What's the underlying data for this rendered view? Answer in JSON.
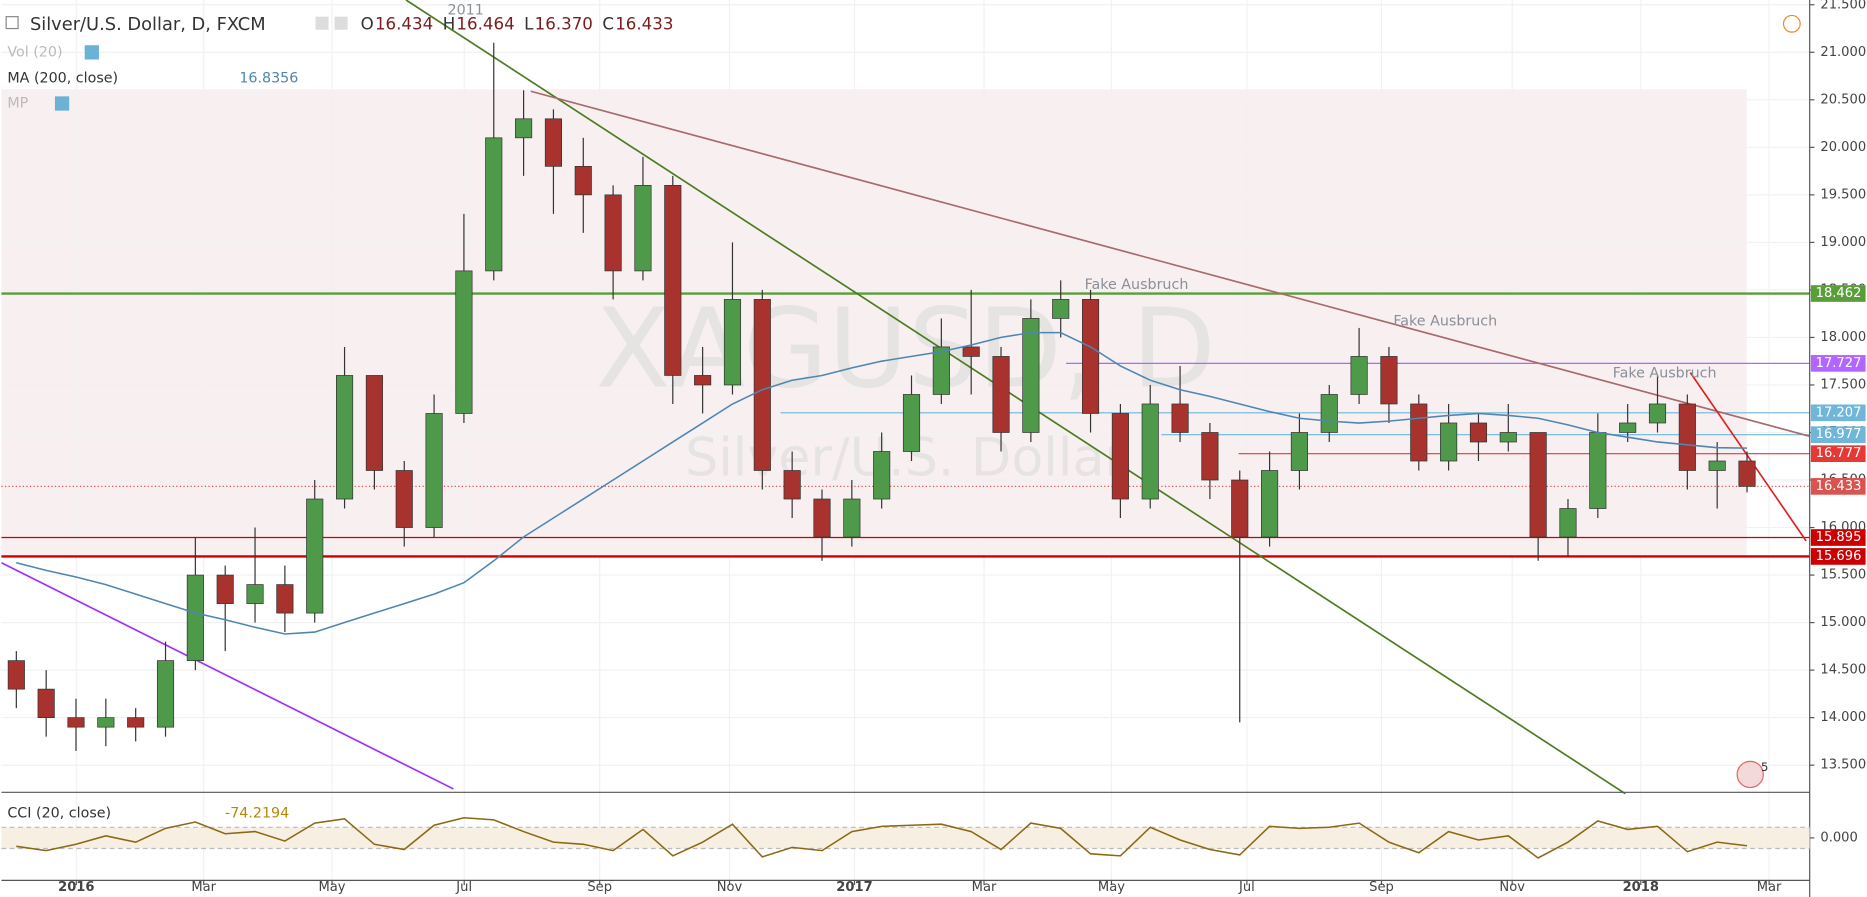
{
  "header": {
    "symbol": "Silver/U.S. Dollar, D, FXCM",
    "ohlc_labels": [
      "O",
      "H",
      "L",
      "C"
    ],
    "ohlc": [
      "16.434",
      "16.464",
      "16.370",
      "16.433"
    ]
  },
  "indicators": {
    "vol": "Vol (20)",
    "ma": "MA (200, close)",
    "ma_value": "16.8356",
    "mp": "MP",
    "cci": "CCI (20, close)",
    "cci_value": "-74.2194"
  },
  "watermark": {
    "symbol": "XAGUSD, D",
    "name": "Silver/U.S. Dollar"
  },
  "badge": "5",
  "chart_data": [
    {
      "type": "candlestick",
      "up_color": "#4f9a4a",
      "down_color": "#a8322d",
      "grid": true,
      "categories": [
        null,
        null,
        null,
        null,
        null,
        null,
        null,
        null,
        null,
        null,
        null,
        null,
        null,
        null,
        null,
        null,
        null,
        null,
        null,
        null,
        null,
        null,
        null,
        null,
        null,
        null,
        null,
        null,
        null,
        null,
        null,
        null,
        null,
        null,
        null,
        null,
        null,
        null,
        null,
        null,
        null,
        null,
        null,
        null,
        null,
        null,
        null,
        null,
        null,
        null,
        null,
        null,
        null,
        null,
        null,
        null,
        null,
        null,
        null
      ],
      "open": [
        14.6,
        14.3,
        14.0,
        13.9,
        14.0,
        13.9,
        14.6,
        15.5,
        15.2,
        15.4,
        15.1,
        16.3,
        17.6,
        16.6,
        16.0,
        17.2,
        18.7,
        20.1,
        20.3,
        19.8,
        19.5,
        18.7,
        19.6,
        17.6,
        17.5,
        18.4,
        16.6,
        16.3,
        15.9,
        16.3,
        16.8,
        17.4,
        17.9,
        17.8,
        17.0,
        18.2,
        18.4,
        17.2,
        16.3,
        17.3,
        17.0,
        16.5,
        15.9,
        16.6,
        17.0,
        17.4,
        17.8,
        17.3,
        16.7,
        17.1,
        16.9,
        17.0,
        15.9,
        16.2,
        17.0,
        17.1,
        17.3,
        16.6,
        16.7
      ],
      "high": [
        14.7,
        14.5,
        14.2,
        14.2,
        14.1,
        14.8,
        15.9,
        15.6,
        16.0,
        15.6,
        16.5,
        17.9,
        17.6,
        16.7,
        17.4,
        19.3,
        21.1,
        20.6,
        20.4,
        20.1,
        19.6,
        19.9,
        19.7,
        17.9,
        19.0,
        18.5,
        16.8,
        16.4,
        16.5,
        17.0,
        17.6,
        18.2,
        18.5,
        17.9,
        18.4,
        18.6,
        18.5,
        17.3,
        17.5,
        17.7,
        17.1,
        16.6,
        16.8,
        17.2,
        17.5,
        18.1,
        17.9,
        17.4,
        17.3,
        17.2,
        17.3,
        17.0,
        16.3,
        17.2,
        17.3,
        17.6,
        17.4,
        16.9,
        16.8
      ],
      "low": [
        14.1,
        13.8,
        13.65,
        13.7,
        13.75,
        13.8,
        14.5,
        14.7,
        15.0,
        14.9,
        15.0,
        16.2,
        16.4,
        15.8,
        15.9,
        17.1,
        18.6,
        19.7,
        19.3,
        19.1,
        18.4,
        18.6,
        17.3,
        17.2,
        17.4,
        16.4,
        16.1,
        15.65,
        15.8,
        16.2,
        16.7,
        17.3,
        17.4,
        16.8,
        16.9,
        18.0,
        17.0,
        16.1,
        16.2,
        16.9,
        16.3,
        13.95,
        15.8,
        16.4,
        16.9,
        17.3,
        17.1,
        16.6,
        16.6,
        16.7,
        16.8,
        15.65,
        15.7,
        16.1,
        16.9,
        17.0,
        16.4,
        16.2,
        16.37
      ],
      "close": [
        14.3,
        14.0,
        13.9,
        14.0,
        13.9,
        14.6,
        15.5,
        15.2,
        15.4,
        15.1,
        16.3,
        17.6,
        16.6,
        16.0,
        17.2,
        18.7,
        20.1,
        20.3,
        19.8,
        19.5,
        18.7,
        19.6,
        17.6,
        17.5,
        18.4,
        16.6,
        16.3,
        15.9,
        16.3,
        16.8,
        17.4,
        17.9,
        17.8,
        17.0,
        18.2,
        18.4,
        17.2,
        16.3,
        17.3,
        17.0,
        16.5,
        15.9,
        16.6,
        17.0,
        17.4,
        17.8,
        17.3,
        16.7,
        17.1,
        16.9,
        17.0,
        15.9,
        16.2,
        17.0,
        17.1,
        17.3,
        16.6,
        16.7,
        16.433
      ],
      "series": [
        {
          "name": "MA (200, close)",
          "color": "#4f86b0",
          "values": [
            15.63,
            15.55,
            15.48,
            15.4,
            15.3,
            15.2,
            15.1,
            15.03,
            14.95,
            14.88,
            14.9,
            15.0,
            15.1,
            15.2,
            15.3,
            15.42,
            15.65,
            15.9,
            16.1,
            16.3,
            16.5,
            16.7,
            16.9,
            17.1,
            17.3,
            17.45,
            17.55,
            17.6,
            17.68,
            17.75,
            17.8,
            17.85,
            17.92,
            18.0,
            18.05,
            18.05,
            17.9,
            17.7,
            17.55,
            17.45,
            17.38,
            17.3,
            17.22,
            17.15,
            17.12,
            17.1,
            17.12,
            17.15,
            17.18,
            17.2,
            17.18,
            17.15,
            17.08,
            17.0,
            16.95,
            16.9,
            16.87,
            16.84,
            16.8356
          ]
        }
      ],
      "xlim": [
        -0.5,
        60.1
      ],
      "xticks": [
        {
          "value": 2.01,
          "label": "2016"
        },
        {
          "value": 6.28,
          "label": "Mar"
        },
        {
          "value": 10.58,
          "label": "May"
        },
        {
          "value": 15.01,
          "label": "Jul"
        },
        {
          "value": 19.55,
          "label": "Sep"
        },
        {
          "value": 23.9,
          "label": "Nov"
        },
        {
          "value": 28.09,
          "label": "2017"
        },
        {
          "value": 32.43,
          "label": "Mar"
        },
        {
          "value": 36.7,
          "label": "May"
        },
        {
          "value": 41.24,
          "label": "Jul"
        },
        {
          "value": 45.75,
          "label": "Sep"
        },
        {
          "value": 50.13,
          "label": "Nov"
        },
        {
          "value": 54.44,
          "label": "2018"
        },
        {
          "value": 58.74,
          "label": "Mar"
        }
      ],
      "ylim": [
        13.227,
        21.55
      ],
      "yticks": [
        {
          "value": 13.5,
          "label": "13.500"
        },
        {
          "value": 14,
          "label": "14.000"
        },
        {
          "value": 14.5,
          "label": "14.500"
        },
        {
          "value": 15,
          "label": "15.000"
        },
        {
          "value": 15.5,
          "label": "15.500"
        },
        {
          "value": 16,
          "label": "16.000"
        },
        {
          "value": 16.5,
          "label": "16.500"
        },
        {
          "value": 17,
          "label": "17.000"
        },
        {
          "value": 17.5,
          "label": "17.500"
        },
        {
          "value": 18,
          "label": "18.000"
        },
        {
          "value": 18.5,
          "label": "18.500"
        },
        {
          "value": 19,
          "label": "19.000"
        },
        {
          "value": 19.5,
          "label": "19.500"
        },
        {
          "value": 20,
          "label": "20.000"
        },
        {
          "value": 20.5,
          "label": "20.500"
        },
        {
          "value": 21,
          "label": "21.000"
        },
        {
          "value": 21.5,
          "label": "21.500"
        }
      ],
      "levels": [
        {
          "value": 18.462,
          "label": "18.462",
          "color": "#5a9e3a",
          "style": "thick",
          "start": -0.5
        },
        {
          "value": 17.727,
          "label": "17.727",
          "color": "#b266ff",
          "style": "thin",
          "start": 35.18
        },
        {
          "value": 17.207,
          "label": "17.207",
          "color": "#6fb6d8",
          "style": "thin",
          "start": 25.61
        },
        {
          "value": 16.977,
          "label": "16.977",
          "color": "#6fb6d8",
          "style": "thin",
          "start": 38.37
        },
        {
          "value": 16.777,
          "label": "16.777",
          "color": "#e53935",
          "style": "thin",
          "start": 40.96
        },
        {
          "value": 16.433,
          "label": "16.433",
          "color": "#d9534f",
          "style": "dotted",
          "start": -0.5
        },
        {
          "value": 15.895,
          "label": "15.895",
          "color": "#cc0000",
          "style": "thin",
          "start": -0.5
        },
        {
          "value": 15.696,
          "label": "15.696",
          "color": "#cc0000",
          "style": "thick",
          "start": -0.5
        }
      ],
      "trendlines": [
        {
          "x": [
            13.06,
            53.92
          ],
          "y": [
            21.55,
            13.2
          ],
          "color": "#4a7c1f"
        },
        {
          "x": [
            17.24,
            60.1
          ],
          "y": [
            20.59,
            16.96
          ],
          "color": "#a86a6a"
        },
        {
          "x": [
            -0.5,
            14.65
          ],
          "y": [
            15.63,
            13.25
          ],
          "color": "#9b30ff"
        },
        {
          "x": [
            56.1,
            59.98
          ],
          "y": [
            17.63,
            15.86
          ],
          "color": "#e02020"
        }
      ],
      "annotations": [
        {
          "text": "Fake Ausbruch",
          "x": 35.8,
          "y": 18.55
        },
        {
          "text": "Fake Ausbruch",
          "x": 46.15,
          "y": 18.17
        },
        {
          "text": "Fake Ausbruch",
          "x": 53.5,
          "y": 17.62
        },
        {
          "text": "2011",
          "x": 14.45,
          "y": 21.44
        }
      ]
    },
    {
      "type": "line",
      "series": [
        {
          "name": "CCI (20, close)",
          "color": "#8b6914",
          "values": [
            -80,
            -120,
            -60,
            20,
            -40,
            90,
            150,
            40,
            60,
            -30,
            140,
            180,
            -60,
            -110,
            120,
            190,
            170,
            60,
            -40,
            -60,
            -120,
            80,
            -170,
            -40,
            130,
            -180,
            -90,
            -120,
            60,
            110,
            120,
            130,
            60,
            -110,
            140,
            90,
            -150,
            -170,
            100,
            -20,
            -110,
            -160,
            110,
            90,
            100,
            140,
            -40,
            -140,
            60,
            -20,
            20,
            -190,
            -40,
            160,
            80,
            110,
            -130,
            -40,
            -74.2194
          ]
        }
      ],
      "band": [
        -100,
        100
      ],
      "ylim": [
        -390,
        420
      ],
      "yticks": [
        {
          "value": 0,
          "label": "0.000"
        }
      ]
    }
  ]
}
